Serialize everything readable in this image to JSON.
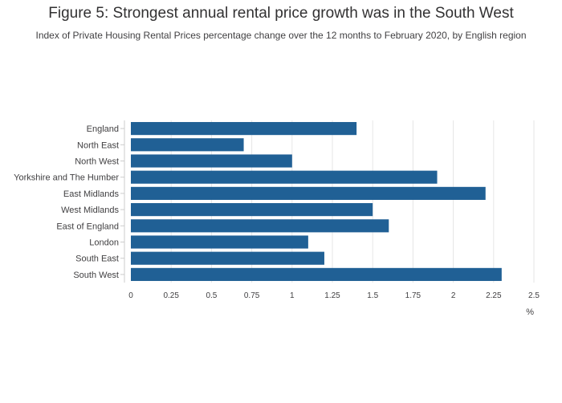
{
  "chart_data": {
    "type": "bar",
    "orientation": "horizontal",
    "title": "Figure 5: Strongest annual rental price growth was in the South West",
    "subtitle": "Index of Private Housing Rental Prices percentage change over the 12 months to February 2020, by English region",
    "xlabel": "%",
    "ylabel": "",
    "categories": [
      "England",
      "North East",
      "North West",
      "Yorkshire and The Humber",
      "East Midlands",
      "West Midlands",
      "East of England",
      "London",
      "South East",
      "South West"
    ],
    "values": [
      1.4,
      0.7,
      1.0,
      1.9,
      2.2,
      1.5,
      1.6,
      1.1,
      1.2,
      2.3
    ],
    "xlim": [
      0,
      2.5
    ],
    "xticks": [
      0,
      0.25,
      0.5,
      0.75,
      1,
      1.25,
      1.5,
      1.75,
      2,
      2.25,
      2.5
    ],
    "tick_labels": [
      "0",
      "0.25",
      "0.5",
      "0.75",
      "1",
      "1.25",
      "1.5",
      "1.75",
      "2",
      "2.25",
      "2.5"
    ],
    "grid": true,
    "bar_color": "#206095",
    "grid_color": "#e6e6e6"
  }
}
